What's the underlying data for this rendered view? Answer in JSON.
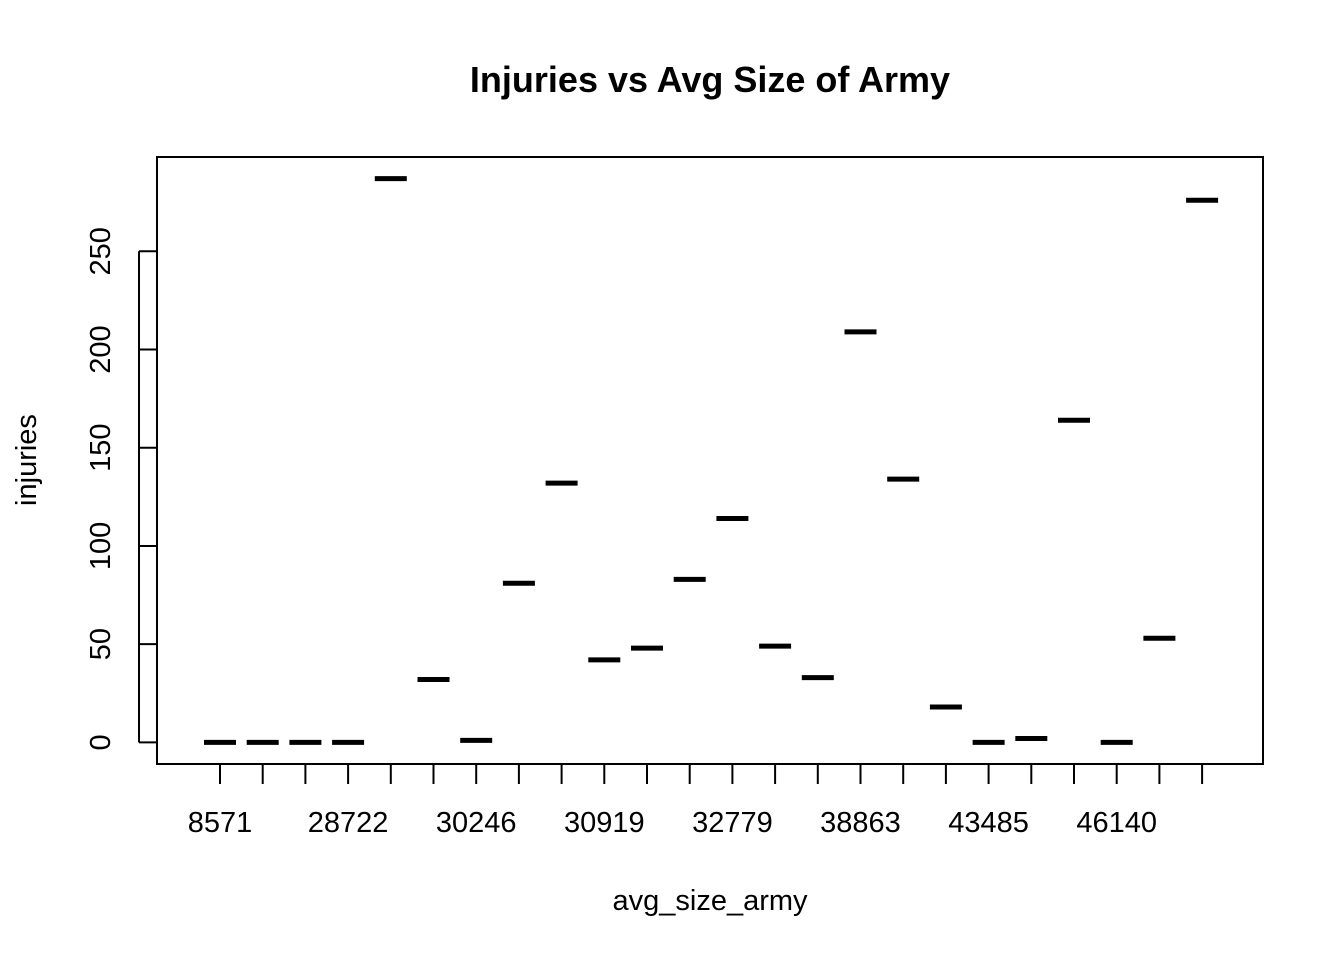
{
  "chart_data": {
    "type": "bar",
    "title": "Injuries vs Avg Size of Army",
    "xlabel": "avg_size_army",
    "ylabel": "injuries",
    "x_tick_labels": [
      "8571",
      "28722",
      "30246",
      "30919",
      "32779",
      "38863",
      "43485",
      "46140"
    ],
    "y_ticks": [
      0,
      50,
      100,
      150,
      200,
      250
    ],
    "ylim": [
      -11,
      298
    ],
    "grid": false,
    "legend": "none",
    "mark_color": "#000000",
    "values": [
      0,
      0,
      0,
      0,
      287,
      32,
      1,
      81,
      132,
      42,
      48,
      83,
      114,
      49,
      33,
      209,
      134,
      18,
      0,
      2,
      164,
      0,
      53,
      276
    ]
  }
}
